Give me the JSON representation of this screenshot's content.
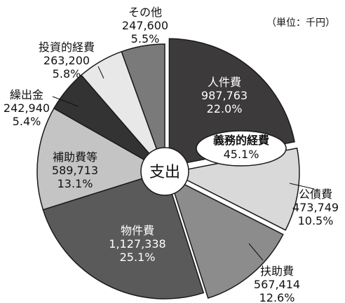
{
  "unit_label": "（単位：千円）",
  "center_label": "支出",
  "callout": {
    "label": "義務的経費",
    "percent": "45.1%"
  },
  "chart_data": {
    "type": "pie",
    "title": "",
    "slices": [
      {
        "name": "人件費",
        "value": 987763,
        "value_label": "987,763",
        "percent": 22.0,
        "percent_label": "22.0%",
        "color": "#3d3a3b"
      },
      {
        "name": "公債費",
        "value": 473749,
        "value_label": "473,749",
        "percent": 10.5,
        "percent_label": "10.5%",
        "color": "#d9d9d9"
      },
      {
        "name": "扶助費",
        "value": 567414,
        "value_label": "567,414",
        "percent": 12.6,
        "percent_label": "12.6%",
        "color": "#8c8c8c"
      },
      {
        "name": "物件費",
        "value": 1127338,
        "value_label": "1,127,338",
        "percent": 25.1,
        "percent_label": "25.1%",
        "color": "#5a5a5a"
      },
      {
        "name": "補助費等",
        "value": 589713,
        "value_label": "589,713",
        "percent": 13.1,
        "percent_label": "13.1%",
        "color": "#c4c4c4"
      },
      {
        "name": "繰出金",
        "value": 242940,
        "value_label": "242,940",
        "percent": 5.4,
        "percent_label": "5.4%",
        "color": "#333333"
      },
      {
        "name": "投資的経費",
        "value": 263200,
        "value_label": "263,200",
        "percent": 5.8,
        "percent_label": "5.8%",
        "color": "#e8e8e8"
      },
      {
        "name": "その他",
        "value": 247600,
        "value_label": "247,600",
        "percent": 5.5,
        "percent_label": "5.5%",
        "color": "#7a7a7a"
      }
    ],
    "exploded": [
      "人件費",
      "公債費",
      "扶助費"
    ]
  }
}
